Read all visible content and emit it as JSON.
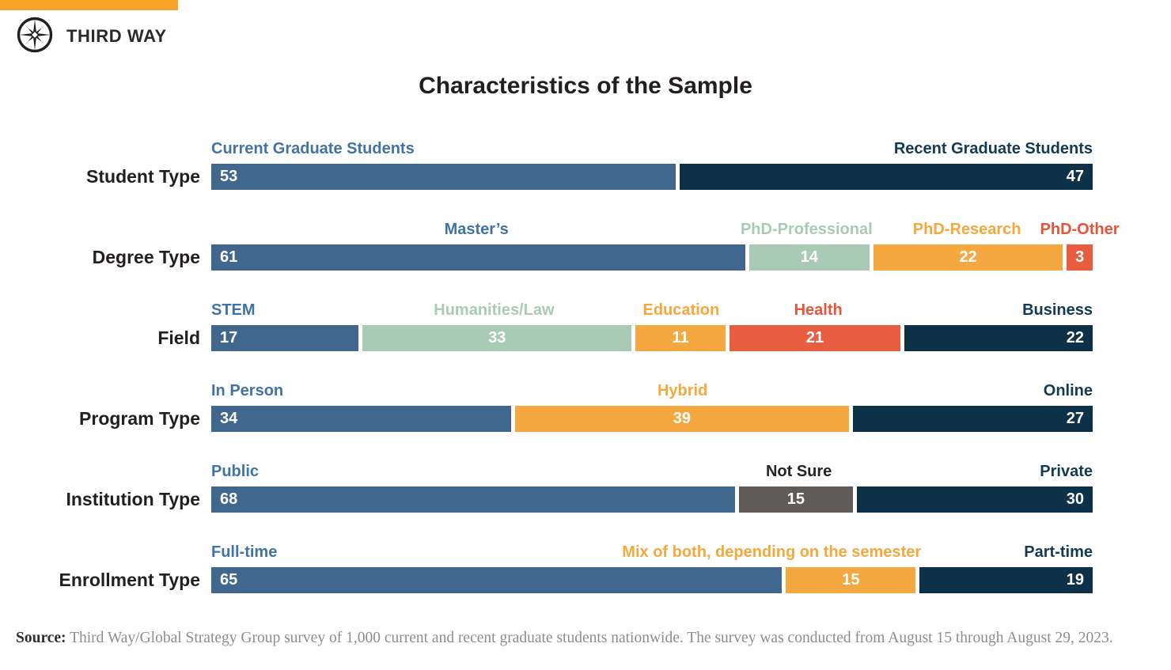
{
  "brand": {
    "name": "THIRD WAY"
  },
  "title": "Characteristics of the Sample",
  "colors": {
    "accent_orange": "#F7A428",
    "bar": {
      "blue": "#41678E",
      "navy": "#0C3149",
      "green": "#A9CBB6",
      "orange": "#F6A840",
      "red": "#E85C40",
      "gray": "#5E5B59"
    },
    "label": {
      "blue": "#4173A6",
      "navy": "#123A54",
      "green": "#A9CBB6",
      "orange": "#F6A83E",
      "red": "#E4563C",
      "gray": "#262322"
    },
    "value_text": "#FFFFFF",
    "text_dark": "#231F20"
  },
  "chart_data": {
    "type": "bar",
    "orientation": "horizontal-stacked",
    "title": "Characteristics of the Sample",
    "xlim": [
      0,
      100
    ],
    "grid": false,
    "legend": "labels-above-segments",
    "rows": [
      {
        "label": "Student Type",
        "segments": [
          {
            "name": "Current Graduate Students",
            "value": 53,
            "color": "blue",
            "labelAlign": "left",
            "valueAlign": "left"
          },
          {
            "name": "Recent Graduate Students",
            "value": 47,
            "color": "navy",
            "labelAlign": "right",
            "valueAlign": "right"
          }
        ]
      },
      {
        "label": "Degree Type",
        "segments": [
          {
            "name": "Master’s",
            "value": 61,
            "color": "blue",
            "labelAlign": "center",
            "valueAlign": "left"
          },
          {
            "name": "PhD-Professional",
            "value": 14,
            "color": "green",
            "labelAlign": "center",
            "valueAlign": "center"
          },
          {
            "name": "PhD-Research",
            "value": 22,
            "color": "orange",
            "labelAlign": "center",
            "valueAlign": "center"
          },
          {
            "name": "PhD-Other",
            "value": 3,
            "color": "red",
            "labelAlign": "center",
            "valueAlign": "center"
          }
        ]
      },
      {
        "label": "Field",
        "segments": [
          {
            "name": "STEM",
            "value": 17,
            "color": "blue",
            "labelAlign": "left",
            "valueAlign": "left"
          },
          {
            "name": "Humanities/Law",
            "value": 33,
            "color": "green",
            "labelAlign": "center",
            "valueAlign": "center"
          },
          {
            "name": "Education",
            "value": 11,
            "color": "orange",
            "labelAlign": "center",
            "valueAlign": "center"
          },
          {
            "name": "Health",
            "value": 21,
            "color": "red",
            "labelAlign": "center",
            "valueAlign": "center"
          },
          {
            "name": "Business",
            "value": 22,
            "color": "navy",
            "labelAlign": "right",
            "valueAlign": "right"
          }
        ]
      },
      {
        "label": "Program Type",
        "segments": [
          {
            "name": "In Person",
            "value": 34,
            "color": "blue",
            "labelAlign": "left",
            "valueAlign": "left"
          },
          {
            "name": "Hybrid",
            "value": 39,
            "color": "orange",
            "labelAlign": "center",
            "valueAlign": "center"
          },
          {
            "name": "Online",
            "value": 27,
            "color": "navy",
            "labelAlign": "right",
            "valueAlign": "right"
          }
        ]
      },
      {
        "label": "Institution Type",
        "segments": [
          {
            "name": "Public",
            "value": 68,
            "color": "blue",
            "labelAlign": "left",
            "valueAlign": "left"
          },
          {
            "name": "Not Sure",
            "value": 15,
            "color": "gray",
            "labelAlign": "center",
            "valueAlign": "center"
          },
          {
            "name": "Private",
            "value": 30,
            "color": "navy",
            "labelAlign": "right",
            "valueAlign": "right"
          }
        ]
      },
      {
        "label": "Enrollment Type",
        "segments": [
          {
            "name": "Full-time",
            "value": 65,
            "color": "blue",
            "labelAlign": "left",
            "valueAlign": "left"
          },
          {
            "name": "Mix of both, depending on the semester",
            "value": 15,
            "color": "orange",
            "labelAlign": "right",
            "valueAlign": "center"
          },
          {
            "name": "Part-time",
            "value": 19,
            "color": "navy",
            "labelAlign": "right",
            "valueAlign": "right"
          }
        ]
      }
    ]
  },
  "source": {
    "label": "Source:",
    "text": " Third Way/Global Strategy Group survey of 1,000 current and recent graduate students nationwide. The survey was conducted from August 15 through August 29, 2023."
  }
}
